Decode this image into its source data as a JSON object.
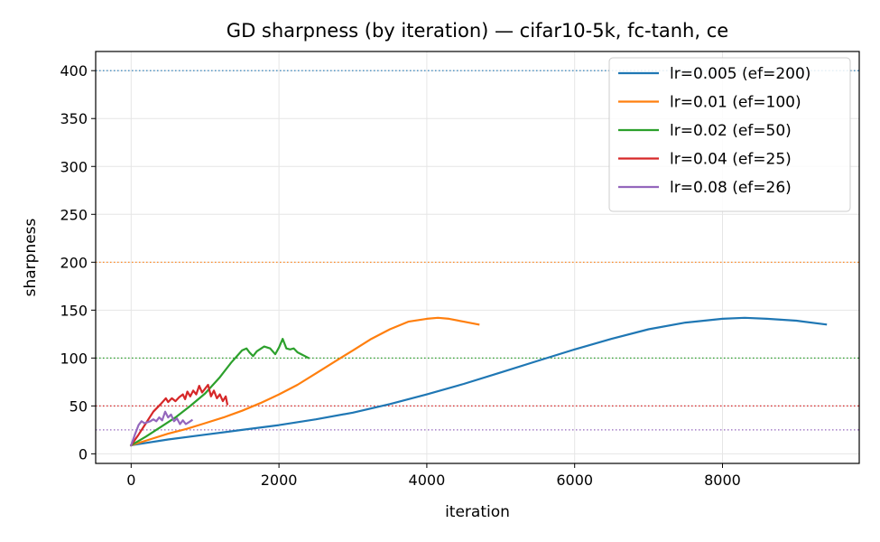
{
  "chart_data": {
    "type": "line",
    "title": "GD sharpness (by iteration) — cifar10-5k, fc-tanh, ce",
    "xlabel": "iteration",
    "ylabel": "sharpness",
    "xlim": [
      -480,
      9850
    ],
    "ylim": [
      -10,
      420
    ],
    "x_ticks": [
      0,
      2000,
      4000,
      6000,
      8000
    ],
    "y_ticks": [
      0,
      50,
      100,
      150,
      200,
      250,
      300,
      350,
      400
    ],
    "grid": true,
    "legend_position": "top-right",
    "series": [
      {
        "name": "lr=0.005 (ef=200)",
        "color": "#1f77b4",
        "threshold": 400,
        "x": [
          0,
          500,
          1000,
          1500,
          2000,
          2500,
          3000,
          3500,
          4000,
          4500,
          5000,
          5500,
          6000,
          6500,
          7000,
          7500,
          8000,
          8300,
          8600,
          9000,
          9400
        ],
        "y": [
          9,
          15,
          20,
          25,
          30,
          36,
          43,
          52,
          62,
          73,
          85,
          97,
          109,
          120,
          130,
          137,
          141,
          142,
          141,
          139,
          135
        ]
      },
      {
        "name": "lr=0.01 (ef=100)",
        "color": "#ff7f0e",
        "threshold": 200,
        "x": [
          0,
          250,
          500,
          750,
          1000,
          1250,
          1500,
          1750,
          2000,
          2250,
          2500,
          2750,
          3000,
          3250,
          3500,
          3750,
          4000,
          4150,
          4300,
          4500,
          4700
        ],
        "y": [
          9,
          15,
          21,
          26,
          32,
          38,
          45,
          53,
          62,
          72,
          84,
          96,
          108,
          120,
          130,
          138,
          141,
          142,
          141,
          138,
          135
        ]
      },
      {
        "name": "lr=0.02 (ef=50)",
        "color": "#2ca02c",
        "threshold": 100,
        "x": [
          0,
          200,
          400,
          600,
          800,
          1000,
          1200,
          1350,
          1500,
          1560,
          1600,
          1650,
          1700,
          1800,
          1880,
          1950,
          2000,
          2050,
          2100,
          2150,
          2200,
          2250,
          2300,
          2350,
          2400
        ],
        "y": [
          9,
          18,
          28,
          38,
          50,
          63,
          80,
          95,
          108,
          110,
          106,
          102,
          107,
          112,
          110,
          104,
          111,
          120,
          110,
          109,
          110,
          106,
          104,
          102,
          100
        ]
      },
      {
        "name": "lr=0.04 (ef=25)",
        "color": "#d62728",
        "threshold": 50,
        "x": [
          0,
          100,
          200,
          300,
          400,
          470,
          500,
          550,
          600,
          650,
          700,
          730,
          760,
          800,
          840,
          880,
          920,
          960,
          1000,
          1040,
          1080,
          1120,
          1160,
          1200,
          1240,
          1280,
          1300
        ],
        "y": [
          9,
          20,
          32,
          44,
          52,
          58,
          54,
          58,
          55,
          59,
          62,
          57,
          65,
          60,
          66,
          62,
          71,
          64,
          68,
          72,
          60,
          66,
          58,
          62,
          55,
          60,
          52
        ]
      },
      {
        "name": "lr=0.08 (ef=26)",
        "color": "#9467bd",
        "threshold": 25,
        "x": [
          0,
          50,
          100,
          140,
          180,
          220,
          260,
          300,
          340,
          380,
          420,
          460,
          500,
          540,
          580,
          620,
          660,
          700,
          740,
          780,
          820
        ],
        "y": [
          9,
          20,
          30,
          34,
          32,
          33,
          34,
          36,
          34,
          38,
          35,
          44,
          38,
          41,
          34,
          37,
          31,
          35,
          31,
          33,
          35
        ]
      }
    ]
  }
}
